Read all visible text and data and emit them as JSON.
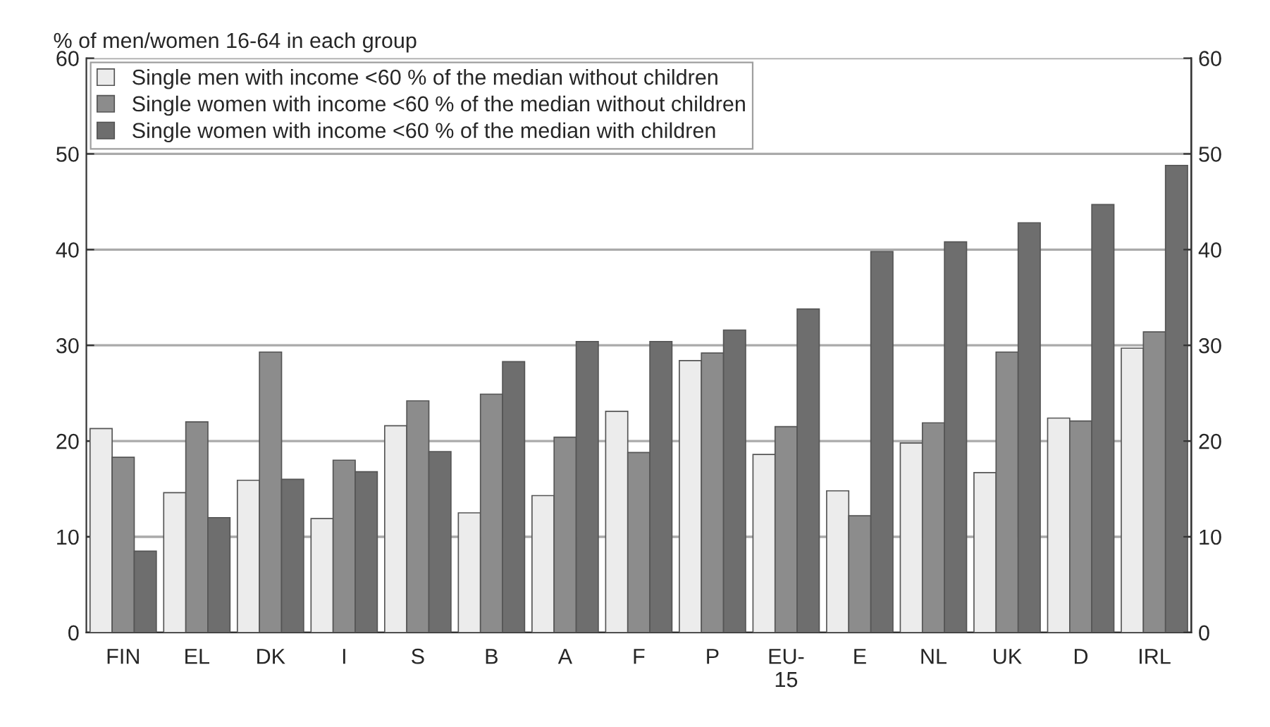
{
  "chart_data": {
    "type": "bar",
    "ylabel": "% of men/women 16-64 in each group",
    "categories": [
      "FIN",
      "EL",
      "DK",
      "I",
      "S",
      "B",
      "A",
      "F",
      "P",
      "EU-\n15",
      "E",
      "NL",
      "UK",
      "D",
      "IRL"
    ],
    "series": [
      {
        "name": "Single men with income <60 % of the median without children",
        "color": "#ececec",
        "values": [
          21.3,
          14.6,
          15.9,
          11.9,
          21.6,
          12.5,
          14.3,
          23.1,
          28.4,
          18.6,
          14.8,
          19.8,
          16.7,
          22.4,
          29.7
        ]
      },
      {
        "name": "Single women with income <60 % of the median without children",
        "color": "#8c8c8c",
        "values": [
          18.3,
          22.0,
          29.3,
          18.0,
          24.2,
          24.9,
          20.4,
          18.8,
          29.2,
          21.5,
          12.2,
          21.9,
          29.3,
          22.1,
          31.4
        ]
      },
      {
        "name": "Single women with income <60 % of the median with children",
        "color": "#6e6e6e",
        "values": [
          8.5,
          12.0,
          16.0,
          16.8,
          18.9,
          28.3,
          30.4,
          30.4,
          31.6,
          33.8,
          39.8,
          40.8,
          42.8,
          44.7,
          48.8
        ]
      }
    ],
    "ylim": [
      0,
      60
    ],
    "yticks": [
      0,
      10,
      20,
      30,
      40,
      50,
      60
    ],
    "y2lim": [
      0,
      60
    ],
    "y2ticks": [
      0,
      10,
      20,
      30,
      40,
      50,
      60
    ],
    "grid": "y",
    "legend": "top left"
  }
}
